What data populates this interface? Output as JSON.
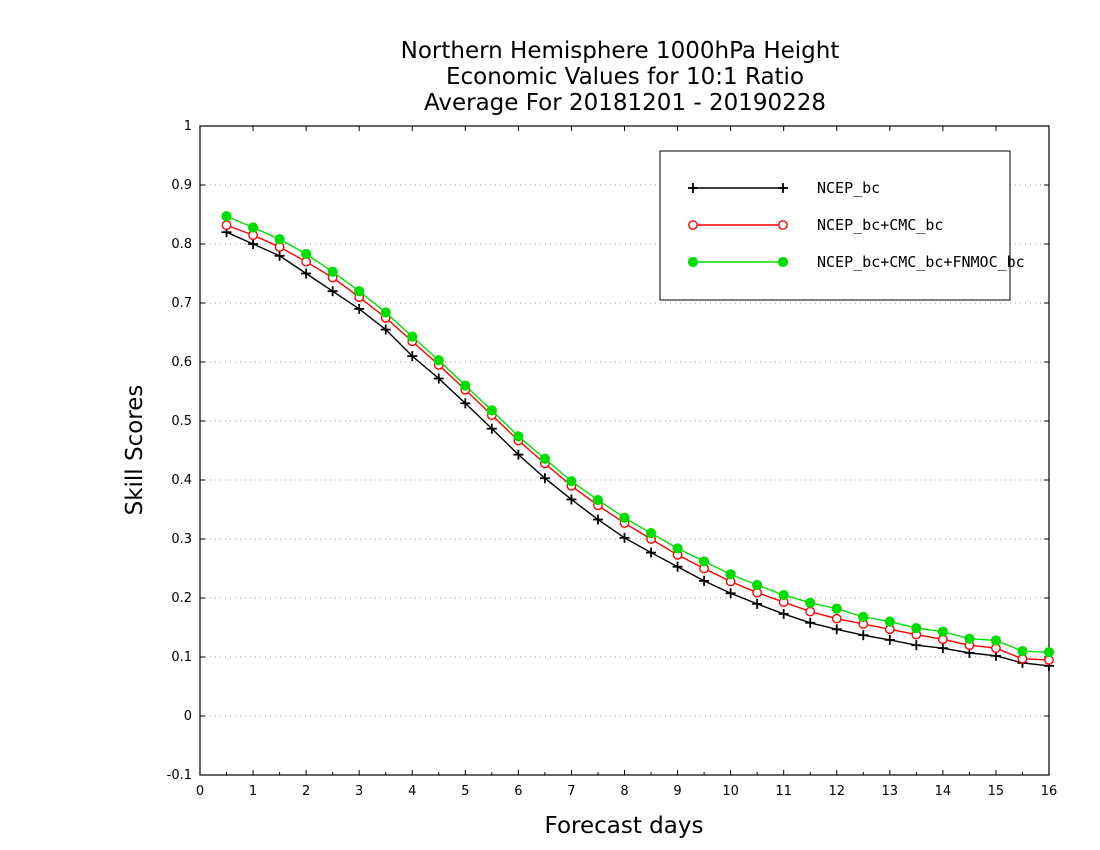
{
  "chart_data": {
    "type": "line",
    "title": [
      "Northern Hemisphere 1000hPa Height",
      "Economic Values for 10:1 Ratio",
      "Average For 20181201 - 20190228"
    ],
    "xlabel": "Forecast days",
    "ylabel": "Skill Scores",
    "xlim": [
      0,
      16
    ],
    "ylim": [
      -0.1,
      1
    ],
    "xticks": [
      "0",
      "1",
      "2",
      "3",
      "4",
      "5",
      "6",
      "7",
      "8",
      "9",
      "10",
      "11",
      "12",
      "13",
      "14",
      "15",
      "16"
    ],
    "yticks": [
      "-0.1",
      "0",
      "0.1",
      "0.2",
      "0.3",
      "0.4",
      "0.5",
      "0.6",
      "0.7",
      "0.8",
      "0.9",
      "1"
    ],
    "grid": true,
    "legend_position": "top-right",
    "x": [
      0.5,
      1,
      1.5,
      2,
      2.5,
      3,
      3.5,
      4,
      4.5,
      5,
      5.5,
      6,
      6.5,
      7,
      7.5,
      8,
      8.5,
      9,
      9.5,
      10,
      10.5,
      11,
      11.5,
      12,
      12.5,
      13,
      13.5,
      14,
      14.5,
      15,
      15.5,
      16
    ],
    "series": [
      {
        "name": "NCEP_bc",
        "color": "#000000",
        "marker": "plus",
        "values": [
          0.82,
          0.8,
          0.78,
          0.75,
          0.72,
          0.69,
          0.655,
          0.61,
          0.572,
          0.53,
          0.487,
          0.443,
          0.403,
          0.367,
          0.333,
          0.302,
          0.277,
          0.253,
          0.229,
          0.208,
          0.19,
          0.173,
          0.158,
          0.147,
          0.137,
          0.129,
          0.12,
          0.115,
          0.107,
          0.102,
          0.09,
          0.085
        ]
      },
      {
        "name": "NCEP_bc+CMC_bc",
        "color": "#ff0000",
        "marker": "open-circle",
        "values": [
          0.832,
          0.815,
          0.795,
          0.77,
          0.743,
          0.71,
          0.675,
          0.635,
          0.595,
          0.553,
          0.51,
          0.467,
          0.428,
          0.39,
          0.357,
          0.327,
          0.3,
          0.273,
          0.25,
          0.228,
          0.209,
          0.193,
          0.177,
          0.165,
          0.156,
          0.147,
          0.138,
          0.13,
          0.12,
          0.115,
          0.097,
          0.095
        ]
      },
      {
        "name": "NCEP_bc+CMC_bc+FNMOC_bc",
        "color": "#00dd00",
        "marker": "filled-circle",
        "values": [
          0.847,
          0.828,
          0.808,
          0.783,
          0.753,
          0.72,
          0.684,
          0.643,
          0.603,
          0.56,
          0.518,
          0.474,
          0.436,
          0.398,
          0.366,
          0.336,
          0.31,
          0.284,
          0.262,
          0.24,
          0.222,
          0.205,
          0.192,
          0.182,
          0.168,
          0.16,
          0.149,
          0.143,
          0.131,
          0.128,
          0.11,
          0.108
        ]
      }
    ]
  }
}
